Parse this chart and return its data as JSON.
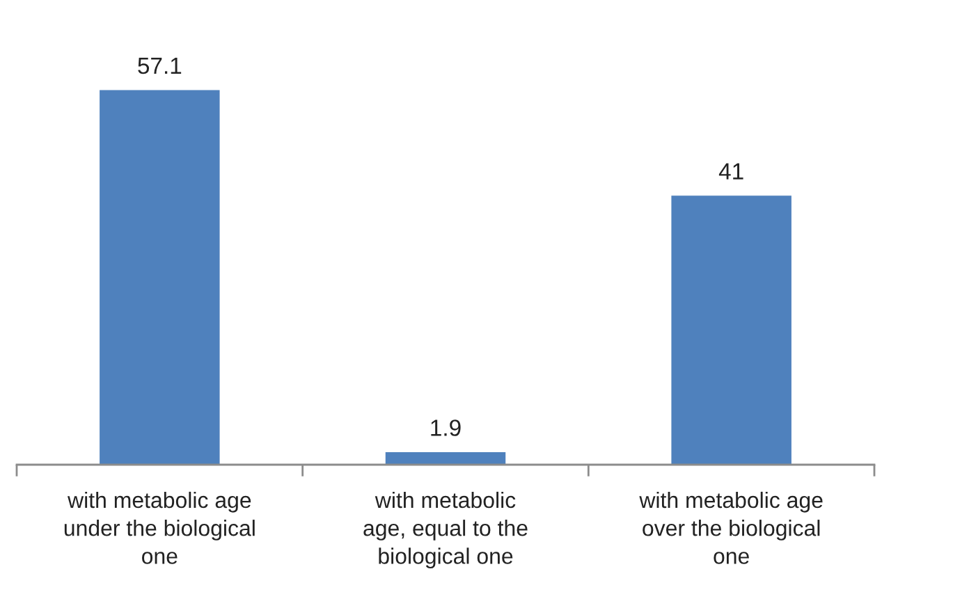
{
  "chart_data": {
    "type": "bar",
    "categories": [
      "with metabolic age\nunder the biological\none",
      "with metabolic\nage, equal to the\nbiological one",
      "with metabolic age\nover the biological\none"
    ],
    "values": [
      57.1,
      1.9,
      41
    ],
    "color": "#4f81bd",
    "data_labels": true
  }
}
